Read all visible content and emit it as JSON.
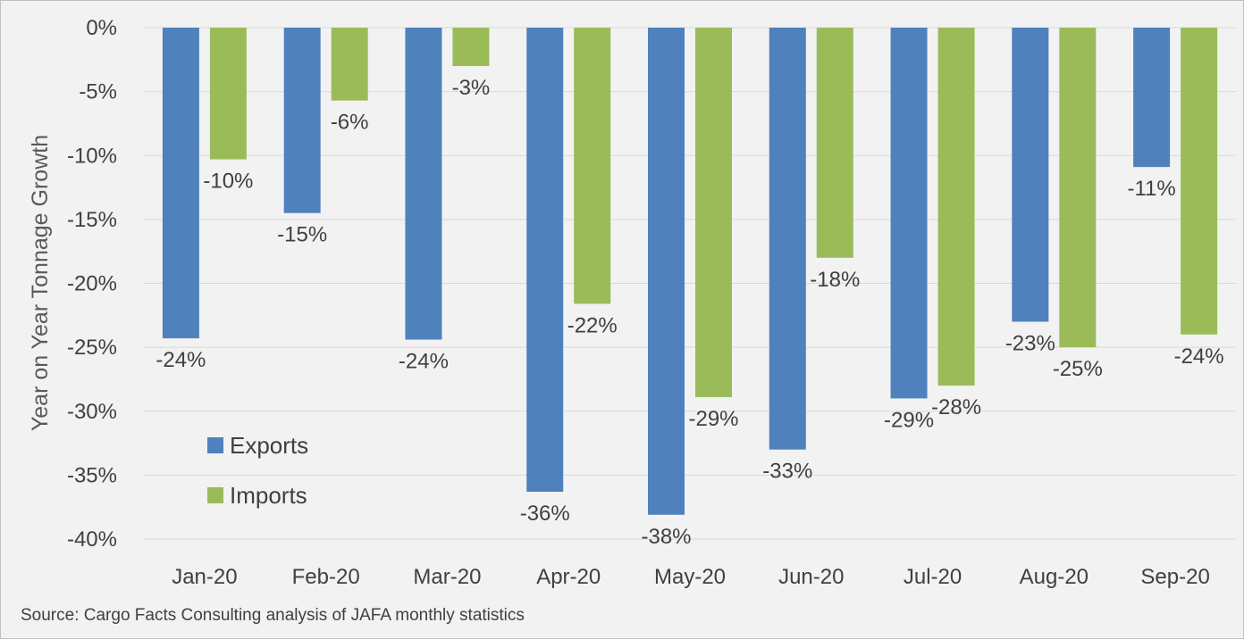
{
  "chart_data": {
    "type": "bar",
    "title": "",
    "xlabel": "",
    "ylabel": "Year on Year Tonnage Growth",
    "categories": [
      "Jan-20",
      "Feb-20",
      "Mar-20",
      "Apr-20",
      "May-20",
      "Jun-20",
      "Jul-20",
      "Aug-20",
      "Sep-20"
    ],
    "series": [
      {
        "name": "Exports",
        "color": "#4f81bd",
        "values": [
          -24.3,
          -14.5,
          -24.4,
          -36.3,
          -38.1,
          -33.0,
          -29.0,
          -23.0,
          -10.9
        ],
        "labels": [
          "-24%",
          "-15%",
          "-24%",
          "-36%",
          "-38%",
          "-33%",
          "-29%",
          "-23%",
          "-11%"
        ]
      },
      {
        "name": "Imports",
        "color": "#9bbb59",
        "values": [
          -10.3,
          -5.7,
          -3.0,
          -21.6,
          -28.9,
          -18.0,
          -28.0,
          -25.0,
          -24.0
        ],
        "labels": [
          "-10%",
          "-6%",
          "-3%",
          "-22%",
          "-29%",
          "-18%",
          "-28%",
          "-25%",
          "-24%"
        ]
      }
    ],
    "ylim": [
      -40,
      0
    ],
    "yticks": [
      0,
      -5,
      -10,
      -15,
      -20,
      -25,
      -30,
      -35,
      -40
    ],
    "ytick_labels": [
      "0%",
      "-5%",
      "-10%",
      "-15%",
      "-20%",
      "-25%",
      "-30%",
      "-35%",
      "-40%"
    ],
    "grid": true,
    "legend": "bottom-left, inside plot",
    "source": "Source: Cargo Facts Consulting analysis of JAFA monthly statistics"
  }
}
